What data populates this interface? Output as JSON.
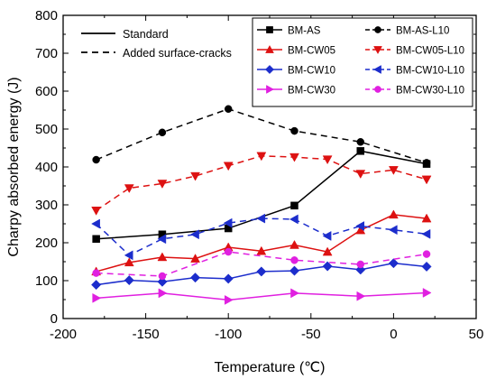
{
  "chart_data": {
    "type": "line",
    "title": "",
    "xlabel": "Temperature (℃)",
    "ylabel": "Charpy absorbed energy (J)",
    "xlim": [
      -200,
      50
    ],
    "ylim": [
      0,
      800
    ],
    "xticks": [
      -200,
      -150,
      -100,
      -50,
      0,
      50
    ],
    "yticks": [
      0,
      100,
      200,
      300,
      400,
      500,
      600,
      700,
      800
    ],
    "grid": false,
    "legend_placement": "top",
    "style_legend": [
      {
        "label": "Standard",
        "dash": "solid"
      },
      {
        "label": "Added surface-cracks",
        "dash": "dashed"
      }
    ],
    "series": [
      {
        "name": "BM-AS",
        "color": "#000000",
        "marker": "square",
        "dash": "solid",
        "x": [
          -180,
          -140,
          -100,
          -60,
          -20,
          20
        ],
        "y": [
          210,
          222,
          238,
          298,
          442,
          408
        ]
      },
      {
        "name": "BM-AS-L10",
        "color": "#000000",
        "marker": "circle",
        "dash": "dashed",
        "x": [
          -180,
          -140,
          -100,
          -60,
          -20,
          20
        ],
        "y": [
          419,
          491,
          553,
          495,
          466,
          411
        ]
      },
      {
        "name": "BM-CW05",
        "color": "#dd1111",
        "marker": "triangle-up",
        "dash": "solid",
        "x": [
          -180,
          -160,
          -140,
          -120,
          -100,
          -80,
          -60,
          -40,
          -20,
          0,
          20
        ],
        "y": [
          124,
          148,
          162,
          158,
          188,
          178,
          194,
          176,
          233,
          274,
          264
        ]
      },
      {
        "name": "BM-CW05-L10",
        "color": "#dd1111",
        "marker": "triangle-down",
        "dash": "dashed",
        "x": [
          -180,
          -160,
          -140,
          -120,
          -100,
          -80,
          -60,
          -40,
          -20,
          0,
          20
        ],
        "y": [
          285,
          344,
          356,
          376,
          403,
          429,
          426,
          420,
          382,
          392,
          367
        ]
      },
      {
        "name": "BM-CW10",
        "color": "#1c2dcc",
        "marker": "diamond",
        "dash": "solid",
        "x": [
          -180,
          -160,
          -140,
          -120,
          -100,
          -80,
          -60,
          -40,
          -20,
          0,
          20
        ],
        "y": [
          89,
          101,
          97,
          108,
          105,
          124,
          126,
          138,
          129,
          146,
          137
        ]
      },
      {
        "name": "BM-CW10-L10",
        "color": "#1c2dcc",
        "marker": "triangle-left",
        "dash": "dashed",
        "x": [
          -180,
          -160,
          -140,
          -120,
          -100,
          -80,
          -60,
          -40,
          -20,
          0,
          20
        ],
        "y": [
          250,
          167,
          210,
          222,
          252,
          264,
          262,
          218,
          244,
          234,
          223
        ]
      },
      {
        "name": "BM-CW30",
        "color": "#e020e0",
        "marker": "triangle-right",
        "dash": "solid",
        "x": [
          -180,
          -140,
          -100,
          -60,
          -20,
          20
        ],
        "y": [
          54,
          67,
          49,
          67,
          59,
          68
        ]
      },
      {
        "name": "BM-CW30-L10",
        "color": "#e020e0",
        "marker": "circle",
        "dash": "dashed",
        "x": [
          -180,
          -140,
          -100,
          -60,
          -20,
          20
        ],
        "y": [
          120,
          112,
          176,
          154,
          143,
          170
        ]
      }
    ]
  }
}
